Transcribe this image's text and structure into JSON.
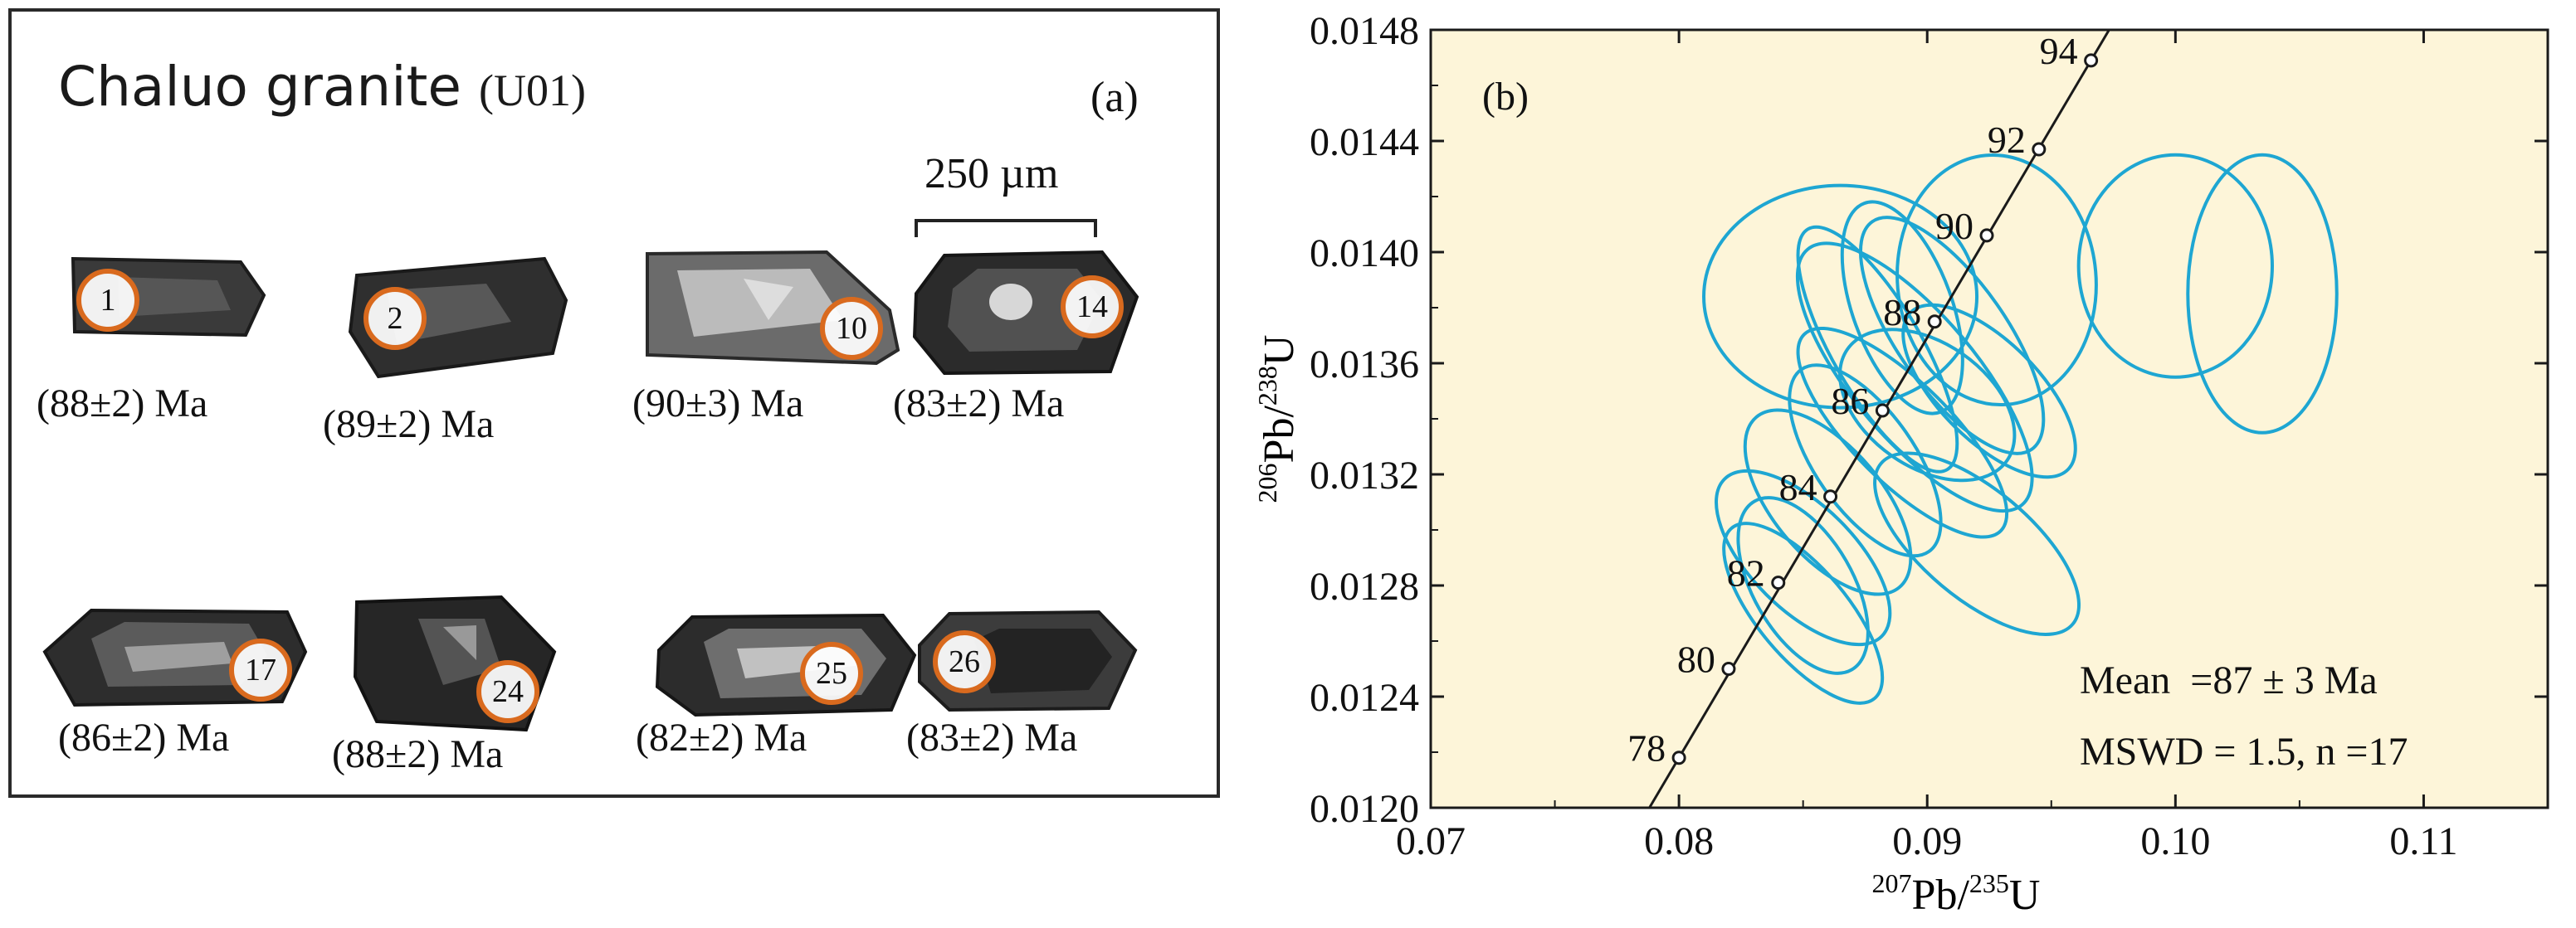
{
  "panel_a": {
    "title": "Chaluo granite",
    "sample": "(U01)",
    "panel_label": "(a)",
    "scale_bar_label": "250 µm",
    "grains": [
      {
        "spot": "1",
        "age": "(88±2) Ma"
      },
      {
        "spot": "2",
        "age": "(89±2) Ma"
      },
      {
        "spot": "10",
        "age": "(90±3) Ma"
      },
      {
        "spot": "14",
        "age": "(83±2) Ma"
      },
      {
        "spot": "17",
        "age": "(86±2) Ma"
      },
      {
        "spot": "24",
        "age": "(88±2) Ma"
      },
      {
        "spot": "25",
        "age": "(82±2) Ma"
      },
      {
        "spot": "26",
        "age": "(83±2) Ma"
      }
    ]
  },
  "chart_data": {
    "type": "scatter",
    "subtype": "U-Pb concordia diagram with error ellipses",
    "panel_label": "(b)",
    "xlabel": "207Pb/235U",
    "ylabel": "206Pb/238U",
    "xlim": [
      0.07,
      0.115
    ],
    "ylim": [
      0.012,
      0.0148
    ],
    "x_ticks": [
      "0.07",
      "0.08",
      "0.09",
      "0.10",
      "0.11"
    ],
    "y_ticks": [
      "0.0120",
      "0.0124",
      "0.0128",
      "0.0132",
      "0.0136",
      "0.0140",
      "0.0144",
      "0.0148"
    ],
    "background_color": "#fdf5d9",
    "ellipse_color": "#1ea6d2",
    "concordia_color": "#1a1a1a",
    "concordia_points": [
      {
        "age": "78",
        "x": 0.08,
        "y": 0.01218
      },
      {
        "age": "80",
        "x": 0.082,
        "y": 0.0125
      },
      {
        "age": "82",
        "x": 0.084,
        "y": 0.01281
      },
      {
        "age": "84",
        "x": 0.0861,
        "y": 0.01312
      },
      {
        "age": "86",
        "x": 0.0882,
        "y": 0.01343
      },
      {
        "age": "88",
        "x": 0.0903,
        "y": 0.01375
      },
      {
        "age": "90",
        "x": 0.0924,
        "y": 0.01406
      },
      {
        "age": "92",
        "x": 0.0945,
        "y": 0.01437
      },
      {
        "age": "94",
        "x": 0.0966,
        "y": 0.01469
      }
    ],
    "ellipses": [
      {
        "x": 0.0865,
        "y": 0.01384,
        "rx": 0.0055,
        "ry": 0.0004,
        "angle_deg": 0
      },
      {
        "x": 0.0928,
        "y": 0.0139,
        "rx": 0.004,
        "ry": 0.00045,
        "angle_deg": 5
      },
      {
        "x": 0.1,
        "y": 0.01395,
        "rx": 0.0039,
        "ry": 0.0004,
        "angle_deg": 0
      },
      {
        "x": 0.1035,
        "y": 0.01385,
        "rx": 0.003,
        "ry": 0.0005,
        "angle_deg": 0
      },
      {
        "x": 0.091,
        "y": 0.0137,
        "rx": 0.0022,
        "ry": 0.0005,
        "angle_deg": 35
      },
      {
        "x": 0.0895,
        "y": 0.01355,
        "rx": 0.0025,
        "ry": 0.0006,
        "angle_deg": 40
      },
      {
        "x": 0.088,
        "y": 0.01365,
        "rx": 0.0018,
        "ry": 0.0005,
        "angle_deg": 30
      },
      {
        "x": 0.09,
        "y": 0.01345,
        "rx": 0.0025,
        "ry": 0.00035,
        "angle_deg": 55
      },
      {
        "x": 0.089,
        "y": 0.01335,
        "rx": 0.002,
        "ry": 0.0005,
        "angle_deg": 45
      },
      {
        "x": 0.0875,
        "y": 0.01325,
        "rx": 0.002,
        "ry": 0.0004,
        "angle_deg": 35
      },
      {
        "x": 0.086,
        "y": 0.0131,
        "rx": 0.0022,
        "ry": 0.0004,
        "angle_deg": 40
      },
      {
        "x": 0.085,
        "y": 0.0129,
        "rx": 0.0021,
        "ry": 0.0004,
        "angle_deg": 45
      },
      {
        "x": 0.085,
        "y": 0.0128,
        "rx": 0.002,
        "ry": 0.00035,
        "angle_deg": 30
      },
      {
        "x": 0.085,
        "y": 0.0127,
        "rx": 0.0018,
        "ry": 0.0004,
        "angle_deg": 40
      },
      {
        "x": 0.092,
        "y": 0.01295,
        "rx": 0.0022,
        "ry": 0.00045,
        "angle_deg": 50
      },
      {
        "x": 0.0925,
        "y": 0.0135,
        "rx": 0.002,
        "ry": 0.0004,
        "angle_deg": 45
      },
      {
        "x": 0.089,
        "y": 0.0138,
        "rx": 0.002,
        "ry": 0.0004,
        "angle_deg": 20
      }
    ],
    "annotations": [
      "Mean  =87 ± 3 Ma",
      "MSWD = 1.5, n =17"
    ]
  }
}
